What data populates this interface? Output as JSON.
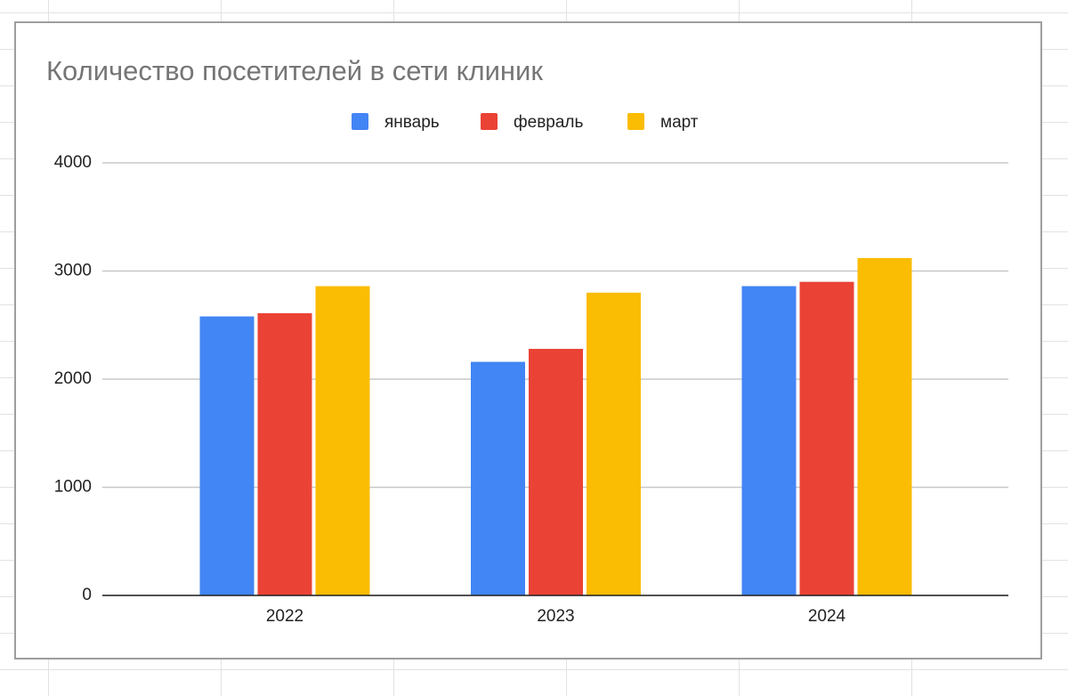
{
  "chart_data": {
    "type": "bar",
    "title": "Количество посетителей в сети клиник",
    "categories": [
      "2022",
      "2023",
      "2024"
    ],
    "series": [
      {
        "name": "январь",
        "color": "#4285f4",
        "values": [
          2580,
          2160,
          2860
        ]
      },
      {
        "name": "февраль",
        "color": "#ea4335",
        "values": [
          2610,
          2280,
          2900
        ]
      },
      {
        "name": "март",
        "color": "#fbbc04",
        "values": [
          2860,
          2800,
          3120
        ]
      }
    ],
    "ylim": [
      0,
      4000
    ],
    "yticks": [
      0,
      1000,
      2000,
      3000,
      4000
    ],
    "grid": true,
    "legend": "top"
  }
}
